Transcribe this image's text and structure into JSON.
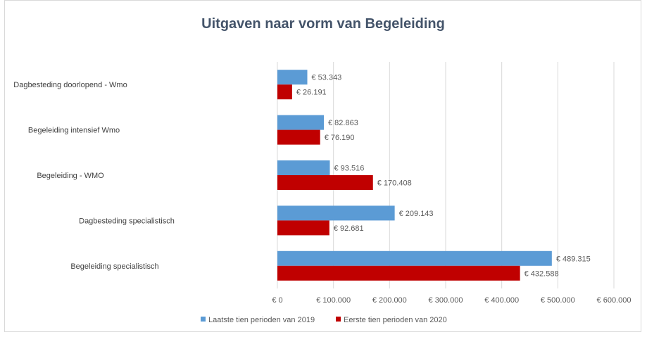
{
  "chart_data": {
    "type": "bar",
    "orientation": "horizontal",
    "title": "Uitgaven naar vorm van Begeleiding",
    "xlabel": "",
    "ylabel": "",
    "categories": [
      "Dagbesteding doorlopend - Wmo",
      "Begeleiding intensief Wmo",
      "Begeleiding - WMO",
      "Dagbesteding specialistisch",
      "Begeleiding specialistisch"
    ],
    "series": [
      {
        "name": "Laatste tien perioden van 2019",
        "color": "#5b9bd5",
        "values": [
          53343,
          82863,
          93516,
          209143,
          489315
        ],
        "labels": [
          "€ 53.343",
          "€ 82.863",
          "€ 93.516",
          "€ 209.143",
          "€ 489.315"
        ]
      },
      {
        "name": "Eerste tien perioden van 2020",
        "color": "#c00000",
        "values": [
          26191,
          76190,
          170408,
          92681,
          432588
        ],
        "labels": [
          "€ 26.191",
          "€ 76.190",
          "€ 170.408",
          "€ 92.681",
          "€ 432.588"
        ]
      }
    ],
    "xlim": [
      0,
      600000
    ],
    "xticks": [
      0,
      100000,
      200000,
      300000,
      400000,
      500000,
      600000
    ],
    "xtick_labels": [
      "€ 0",
      "€ 100.000",
      "€ 200.000",
      "€ 300.000",
      "€ 400.000",
      "€ 500.000",
      "€ 600.000"
    ],
    "grid": true,
    "legend": "bottom-left"
  }
}
